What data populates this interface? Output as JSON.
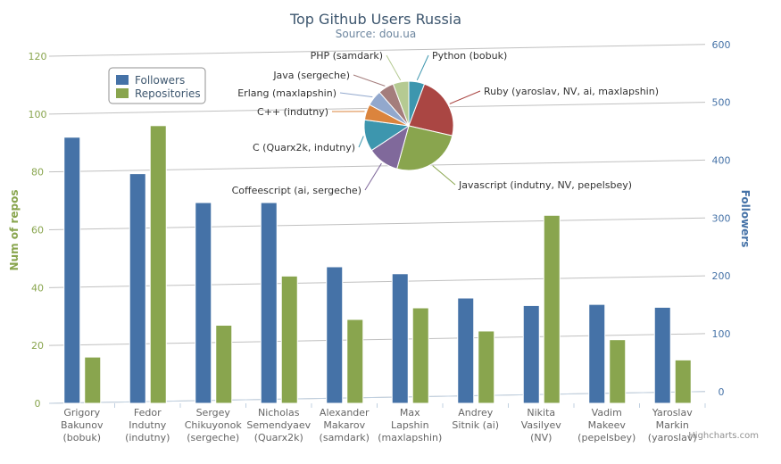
{
  "chart_data": {
    "type": "bar",
    "title": "Top Github Users Russia",
    "subtitle": "Source: dou.ua",
    "credits": "Highcharts.com",
    "categories": [
      [
        "Grigory",
        "Bakunov",
        "(bobuk)"
      ],
      [
        "Fedor",
        "Indutny",
        "(indutny)"
      ],
      [
        "Sergey",
        "Chikuyonok",
        "(sergeche)"
      ],
      [
        "Nicholas",
        "Semendyaev",
        "(Quarx2k)"
      ],
      [
        "Alexander",
        "Makarov",
        "(samdark)"
      ],
      [
        "Max",
        "Lapshin",
        "(maxlapshin)"
      ],
      [
        "Andrey",
        "Sitnik (ai)"
      ],
      [
        "Nikita",
        "Vasilyev",
        "(NV)"
      ],
      [
        "Vadim",
        "Makeev",
        "(pepelsbey)"
      ],
      [
        "Yaroslav",
        "Markin",
        "(yaroslav)"
      ]
    ],
    "y_axis_left": {
      "label": "Num of repos",
      "range": [
        0,
        120
      ],
      "ticks": [
        "0",
        "20",
        "40",
        "60",
        "80",
        "100",
        "120"
      ],
      "color": "#89a54e"
    },
    "y_axis_right": {
      "label": "Followers",
      "range": [
        0,
        600
      ],
      "ticks": [
        "0",
        "100",
        "200",
        "300",
        "400",
        "500",
        "600"
      ],
      "color": "#4572a7"
    },
    "series": [
      {
        "name": "Followers",
        "axis": "right",
        "color": "#4572a7",
        "values": [
          460,
          397,
          347,
          347,
          236,
          224,
          182,
          169,
          171,
          166
        ]
      },
      {
        "name": "Repositories",
        "axis": "left",
        "color": "#89a54e",
        "values": [
          16,
          96,
          27,
          44,
          29,
          33,
          25,
          65,
          22,
          15
        ]
      }
    ],
    "legend_position": "top-left",
    "pie": {
      "type": "pie",
      "slices": [
        {
          "label": "Python (bobuk)",
          "value": 1,
          "color": "#3d96ae"
        },
        {
          "label": "Ruby (yaroslav, NV, ai, maxlapshin)",
          "value": 4,
          "color": "#aa4643"
        },
        {
          "label": "Javascript (indutny, NV, pepelsbey)",
          "value": 4.5,
          "color": "#89a54e"
        },
        {
          "label": "Coffeescript (ai, sergeche)",
          "value": 2,
          "color": "#80699b"
        },
        {
          "label": "C (Quarx2k, indutny)",
          "value": 2,
          "color": "#3d96ae"
        },
        {
          "label": "C++ (indutny)",
          "value": 1,
          "color": "#db843d"
        },
        {
          "label": "Erlang (maxlapshin)",
          "value": 1,
          "color": "#92a8cd"
        },
        {
          "label": "Java (sergeche)",
          "value": 1,
          "color": "#a47d7c"
        },
        {
          "label": "PHP (samdark)",
          "value": 1,
          "color": "#b5ca92"
        }
      ]
    }
  }
}
